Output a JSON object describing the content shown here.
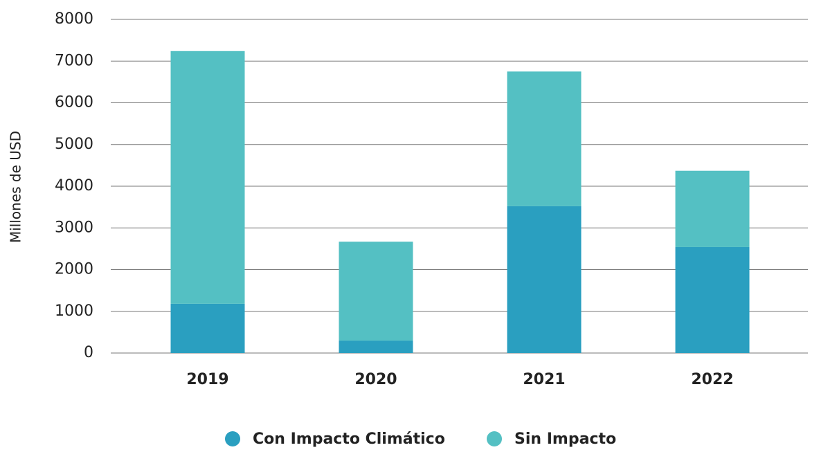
{
  "chart_data": {
    "type": "stacked_bar",
    "y_label": "Millones de USD",
    "categories": [
      "2019",
      "2020",
      "2021",
      "2022"
    ],
    "series": [
      {
        "name": "Con Impacto Climático",
        "color": "#2a9fc0",
        "values": [
          1180,
          300,
          3520,
          2540
        ]
      },
      {
        "name": "Sin Impacto",
        "color": "#54c0c3",
        "values": [
          6060,
          2370,
          3230,
          1830
        ]
      }
    ],
    "ylim": [
      0,
      8000
    ],
    "yticks": [
      0,
      1000,
      2000,
      3000,
      4000,
      5000,
      6000,
      7000,
      8000
    ],
    "grid": true
  }
}
